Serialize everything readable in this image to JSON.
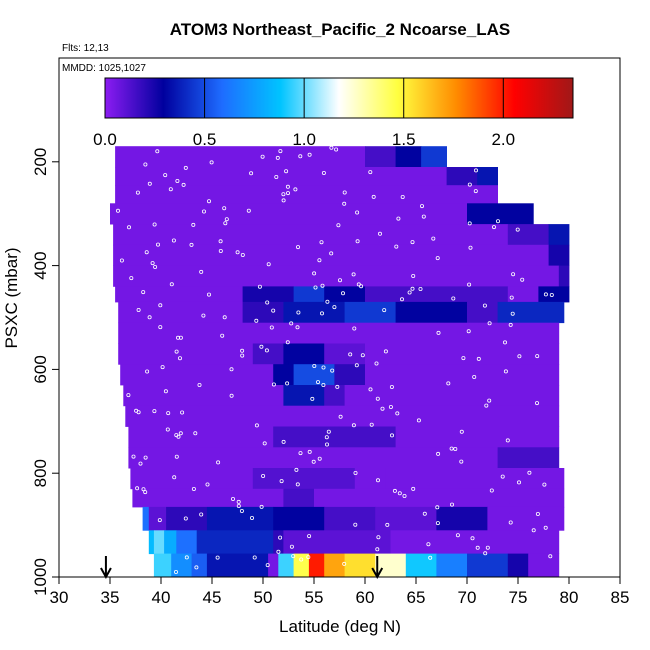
{
  "chart_data": {
    "type": "heatmap",
    "title": "ATOM3 Northeast_Pacific_2 Ncoarse_LAS",
    "flights_label": "Flts: 12,13",
    "dates_label": "MMDD: 1025,1027",
    "xlabel": "Latitude (deg N)",
    "ylabel": "PSXC (mbar)",
    "xlim": [
      30,
      85
    ],
    "ylim": [
      1000,
      0
    ],
    "x_ticks": [
      "30",
      "35",
      "40",
      "45",
      "50",
      "55",
      "60",
      "65",
      "70",
      "75",
      "80",
      "85"
    ],
    "y_ticks": [
      "200",
      "400",
      "600",
      "800",
      "1000"
    ],
    "grid": false,
    "colorbar": {
      "ticks": [
        "0.0",
        "0.5",
        "1.0",
        "1.5",
        "2.0"
      ],
      "tick_values": [
        0,
        0.5,
        1.0,
        1.5,
        2.0
      ],
      "range": [
        0,
        2.35
      ],
      "colors": [
        "#8c1cf2",
        "#00009e",
        "#1e6cff",
        "#00c4ff",
        "#ffffff",
        "#ffff40",
        "#ff8c00",
        "#ff0000",
        "#a01818"
      ]
    },
    "arrows_latitude": [
      34.6,
      61.2
    ],
    "rows": [
      {
        "p_top": 170,
        "p_bot": 210,
        "lat_start": 35.5,
        "lat_end": 68,
        "segments": [
          [
            35.5,
            60,
            0.05
          ],
          [
            60,
            63,
            0.15
          ],
          [
            63,
            65.5,
            0.3
          ],
          [
            65.5,
            68,
            0.45
          ]
        ]
      },
      {
        "p_top": 210,
        "p_bot": 245,
        "lat_start": 35.5,
        "lat_end": 73,
        "segments": [
          [
            35.5,
            68,
            0.05
          ],
          [
            68,
            71,
            0.2
          ],
          [
            71,
            73,
            0.35
          ]
        ]
      },
      {
        "p_top": 245,
        "p_bot": 280,
        "lat_start": 35.5,
        "lat_end": 73,
        "segments": [
          [
            35.5,
            73,
            0.05
          ]
        ]
      },
      {
        "p_top": 280,
        "p_bot": 320,
        "lat_start": 35,
        "lat_end": 76.5,
        "segments": [
          [
            35,
            70,
            0.05
          ],
          [
            70,
            76.5,
            0.3
          ]
        ]
      },
      {
        "p_top": 320,
        "p_bot": 360,
        "lat_start": 35.3,
        "lat_end": 80,
        "segments": [
          [
            35.3,
            74,
            0.05
          ],
          [
            74,
            78,
            0.15
          ],
          [
            78,
            80,
            0.35
          ]
        ]
      },
      {
        "p_top": 360,
        "p_bot": 400,
        "lat_start": 35.3,
        "lat_end": 80,
        "segments": [
          [
            35.3,
            78,
            0.05
          ],
          [
            78,
            80,
            0.25
          ]
        ]
      },
      {
        "p_top": 400,
        "p_bot": 440,
        "lat_start": 35.3,
        "lat_end": 80,
        "segments": [
          [
            35.3,
            79,
            0.05
          ],
          [
            79,
            80,
            0.2
          ]
        ]
      },
      {
        "p_top": 440,
        "p_bot": 470,
        "lat_start": 35.5,
        "lat_end": 80,
        "segments": [
          [
            35.5,
            48,
            0.05
          ],
          [
            48,
            53,
            0.25
          ],
          [
            53,
            56,
            0.45
          ],
          [
            56,
            60,
            0.3
          ],
          [
            60,
            74,
            0.15
          ],
          [
            74,
            77,
            0.05
          ],
          [
            77,
            80,
            0.3
          ]
        ]
      },
      {
        "p_top": 470,
        "p_bot": 510,
        "lat_start": 35.8,
        "lat_end": 79.5,
        "segments": [
          [
            35.8,
            48,
            0.05
          ],
          [
            48,
            52,
            0.2
          ],
          [
            52,
            58,
            0.35
          ],
          [
            58,
            63,
            0.45
          ],
          [
            63,
            70,
            0.3
          ],
          [
            70,
            73,
            0.15
          ],
          [
            73,
            79.5,
            0.4
          ]
        ]
      },
      {
        "p_top": 510,
        "p_bot": 550,
        "lat_start": 35.8,
        "lat_end": 79,
        "segments": [
          [
            35.8,
            79,
            0.05
          ]
        ]
      },
      {
        "p_top": 550,
        "p_bot": 590,
        "lat_start": 35.8,
        "lat_end": 79,
        "segments": [
          [
            35.8,
            49,
            0.05
          ],
          [
            49,
            52,
            0.15
          ],
          [
            52,
            56,
            0.3
          ],
          [
            56,
            60,
            0.1
          ],
          [
            60,
            79,
            0.05
          ]
        ]
      },
      {
        "p_top": 590,
        "p_bot": 630,
        "lat_start": 36,
        "lat_end": 79,
        "segments": [
          [
            36,
            51,
            0.05
          ],
          [
            51,
            53,
            0.3
          ],
          [
            53,
            57,
            0.5
          ],
          [
            57,
            60,
            0.2
          ],
          [
            60,
            79,
            0.05
          ]
        ]
      },
      {
        "p_top": 630,
        "p_bot": 670,
        "lat_start": 36.3,
        "lat_end": 79,
        "segments": [
          [
            36.3,
            52,
            0.05
          ],
          [
            52,
            56,
            0.35
          ],
          [
            56,
            58,
            0.15
          ],
          [
            58,
            79,
            0.05
          ]
        ]
      },
      {
        "p_top": 670,
        "p_bot": 710,
        "lat_start": 36.5,
        "lat_end": 79,
        "segments": [
          [
            36.5,
            79,
            0.05
          ]
        ]
      },
      {
        "p_top": 710,
        "p_bot": 750,
        "lat_start": 36.8,
        "lat_end": 79,
        "segments": [
          [
            36.8,
            51,
            0.05
          ],
          [
            51,
            63,
            0.15
          ],
          [
            63,
            79,
            0.05
          ]
        ]
      },
      {
        "p_top": 750,
        "p_bot": 790,
        "lat_start": 36.8,
        "lat_end": 79,
        "segments": [
          [
            36.8,
            73,
            0.05
          ],
          [
            73,
            79,
            0.15
          ]
        ]
      },
      {
        "p_top": 790,
        "p_bot": 830,
        "lat_start": 37,
        "lat_end": 79.5,
        "segments": [
          [
            37,
            49,
            0.05
          ],
          [
            49,
            59,
            0.12
          ],
          [
            59,
            62,
            0.05
          ],
          [
            62,
            79.5,
            0.05
          ]
        ]
      },
      {
        "p_top": 830,
        "p_bot": 865,
        "lat_start": 37.2,
        "lat_end": 79.5,
        "segments": [
          [
            37.2,
            52,
            0.05
          ],
          [
            52,
            55,
            0.15
          ],
          [
            55,
            79.5,
            0.05
          ]
        ]
      },
      {
        "p_top": 865,
        "p_bot": 910,
        "lat_start": 38.2,
        "lat_end": 79.5,
        "segments": [
          [
            38.2,
            38.8,
            0.6
          ],
          [
            38.8,
            40.5,
            0.1
          ],
          [
            40.5,
            44.5,
            0.2
          ],
          [
            44.5,
            51,
            0.35
          ],
          [
            51,
            56,
            0.3
          ],
          [
            56,
            61,
            0.15
          ],
          [
            61,
            67,
            0.1
          ],
          [
            67,
            72,
            0.25
          ],
          [
            72,
            79.5,
            0.05
          ]
        ]
      },
      {
        "p_top": 910,
        "p_bot": 955,
        "lat_start": 38.8,
        "lat_end": 79,
        "segments": [
          [
            38.8,
            39.3,
            0.85
          ],
          [
            39.3,
            40.3,
            1.0
          ],
          [
            40.3,
            41.5,
            0.8
          ],
          [
            41.5,
            43.5,
            0.6
          ],
          [
            43.5,
            51,
            0.4
          ],
          [
            51,
            52,
            0.2
          ],
          [
            52,
            62.5,
            0.1
          ],
          [
            62.5,
            79,
            0.05
          ]
        ]
      },
      {
        "p_top": 955,
        "p_bot": 1000,
        "lat_start": 39.3,
        "lat_end": 79,
        "segments": [
          [
            39.3,
            41,
            0.95
          ],
          [
            41,
            43,
            0.7
          ],
          [
            43,
            44.5,
            0.55
          ],
          [
            44.5,
            50.5,
            0.35
          ],
          [
            50.5,
            51.5,
            0.05
          ],
          [
            51.5,
            53,
            0.95
          ],
          [
            53,
            54.5,
            1.45
          ],
          [
            54.5,
            56,
            2.0
          ],
          [
            56,
            58,
            1.7
          ],
          [
            58,
            61,
            1.55
          ],
          [
            61,
            64,
            1.25
          ],
          [
            64,
            67,
            0.9
          ],
          [
            67,
            70,
            0.65
          ],
          [
            70,
            74,
            0.45
          ],
          [
            74,
            76,
            0.25
          ],
          [
            76,
            79,
            0.05
          ]
        ]
      }
    ]
  }
}
